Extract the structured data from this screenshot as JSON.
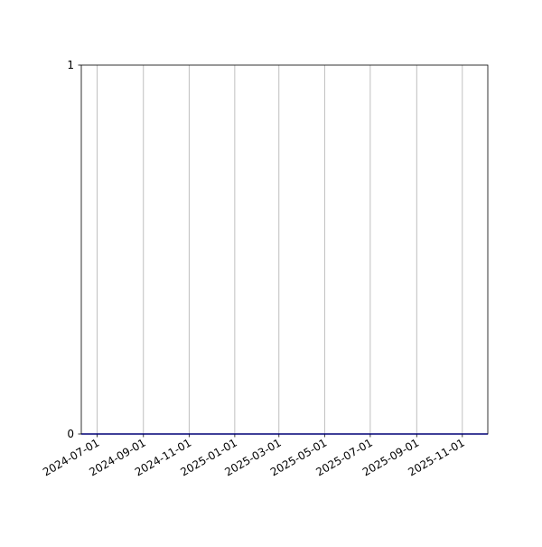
{
  "chart_data": {
    "type": "line",
    "title": "",
    "xlabel": "",
    "ylabel": "",
    "x_type": "date",
    "xlim": [
      "2024-06-10",
      "2025-12-05"
    ],
    "ylim": [
      0,
      1
    ],
    "x_ticks": [
      "2024-07-01",
      "2024-09-01",
      "2024-11-01",
      "2025-01-01",
      "2025-03-01",
      "2025-05-01",
      "2025-07-01",
      "2025-09-01",
      "2025-11-01"
    ],
    "y_ticks": [
      0,
      1
    ],
    "y_tick_labels": [
      "0",
      "1"
    ],
    "grid": {
      "x": true,
      "y": false,
      "color": "#b0b0b0"
    },
    "series": [
      {
        "color": "#0000ff",
        "x": [
          "2024-06-10",
          "2025-12-05"
        ],
        "y": [
          0,
          0
        ]
      }
    ]
  }
}
